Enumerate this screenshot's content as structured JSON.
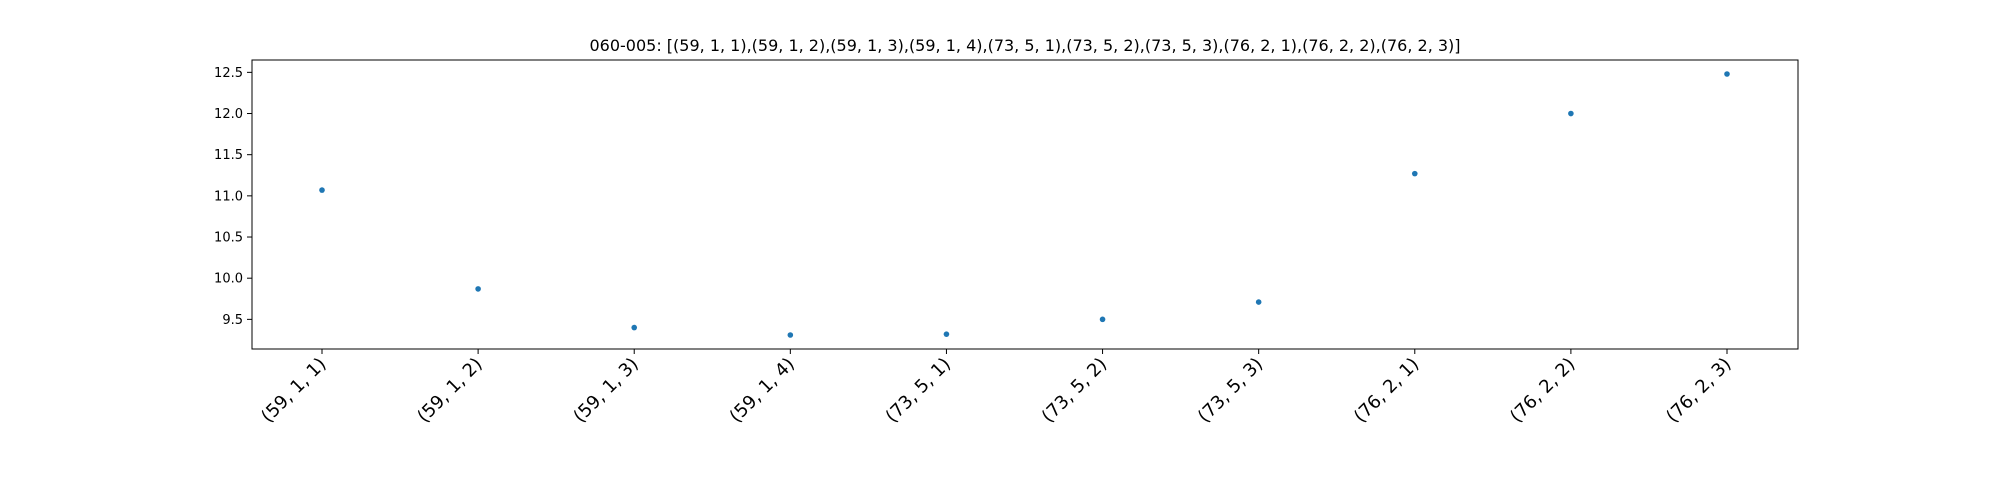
{
  "chart_data": {
    "type": "scatter",
    "title": "060-005: [(59, 1, 1),(59, 1, 2),(59, 1, 3),(59, 1, 4),(73, 5, 1),(73, 5, 2),(73, 5, 3),(76, 2, 1),(76, 2, 2),(76, 2, 3)]",
    "xlabel": "",
    "ylabel": "",
    "categories": [
      "(59, 1, 1)",
      "(59, 1, 2)",
      "(59, 1, 3)",
      "(59, 1, 4)",
      "(73, 5, 1)",
      "(73, 5, 2)",
      "(73, 5, 3)",
      "(76, 2, 1)",
      "(76, 2, 2)",
      "(76, 2, 3)"
    ],
    "values": [
      11.07,
      9.87,
      9.4,
      9.31,
      9.32,
      9.5,
      9.71,
      11.27,
      12.0,
      12.48
    ],
    "ylim": [
      9.14,
      12.65
    ],
    "yticks": [
      9.5,
      10.0,
      10.5,
      11.0,
      11.5,
      12.0,
      12.5
    ],
    "ytick_labels": [
      "9.5",
      "10.0",
      "10.5",
      "11.0",
      "11.5",
      "12.0",
      "12.5"
    ],
    "grid": false,
    "marker_color": "#1f77b4"
  }
}
